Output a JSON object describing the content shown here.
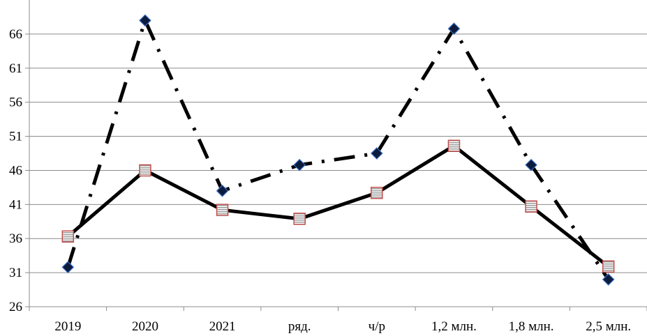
{
  "chart_data": {
    "type": "line",
    "title": "",
    "xlabel": "",
    "ylabel": "",
    "categories": [
      "2019",
      "2020",
      "2021",
      "ряд.",
      "ч/р",
      "1,2 млн.",
      "1,8 млн.",
      "2,5 млн."
    ],
    "ylim": [
      26,
      71
    ],
    "yticks": [
      26,
      31,
      36,
      41,
      46,
      51,
      56,
      61,
      66
    ],
    "grid": "horizontal",
    "legend": "none",
    "series": [
      {
        "style": "dash-dot",
        "marker": "diamond",
        "color": "#000000",
        "marker_fill": "#0d1b3d",
        "marker_stroke": "#3a6fc4",
        "values": [
          31.8,
          68.0,
          43.0,
          46.8,
          48.5,
          66.8,
          46.8,
          30.0
        ]
      },
      {
        "style": "solid",
        "marker": "square-striped",
        "color": "#000000",
        "marker_fill": "#c8c8c8",
        "marker_stroke": "#c0504d",
        "values": [
          36.3,
          46.0,
          40.2,
          38.9,
          42.7,
          49.6,
          40.7,
          31.9
        ]
      }
    ]
  }
}
